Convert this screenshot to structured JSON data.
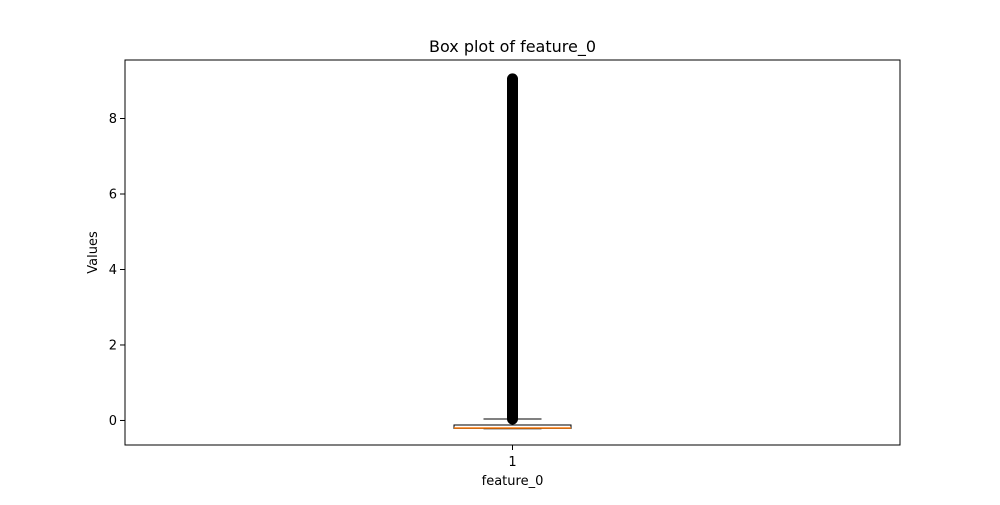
{
  "chart_data": {
    "type": "box",
    "title": "Box plot of feature_0",
    "xlabel": "feature_0",
    "ylabel": "Values",
    "categories": [
      "1"
    ],
    "ylim": [
      -0.65,
      9.55
    ],
    "yticks": [
      0,
      2,
      4,
      6,
      8
    ],
    "grid": false,
    "legend": "none",
    "boxes": [
      {
        "category": "1",
        "whisker_low": -0.22,
        "q1": -0.21,
        "median": -0.2,
        "q3": -0.12,
        "whisker_high": 0.04,
        "outlier_min": 0.04,
        "outlier_max": 9.05
      }
    ],
    "colors": {
      "box": "#000000",
      "median": "#ff7f0e",
      "outliers": "#000000"
    }
  }
}
